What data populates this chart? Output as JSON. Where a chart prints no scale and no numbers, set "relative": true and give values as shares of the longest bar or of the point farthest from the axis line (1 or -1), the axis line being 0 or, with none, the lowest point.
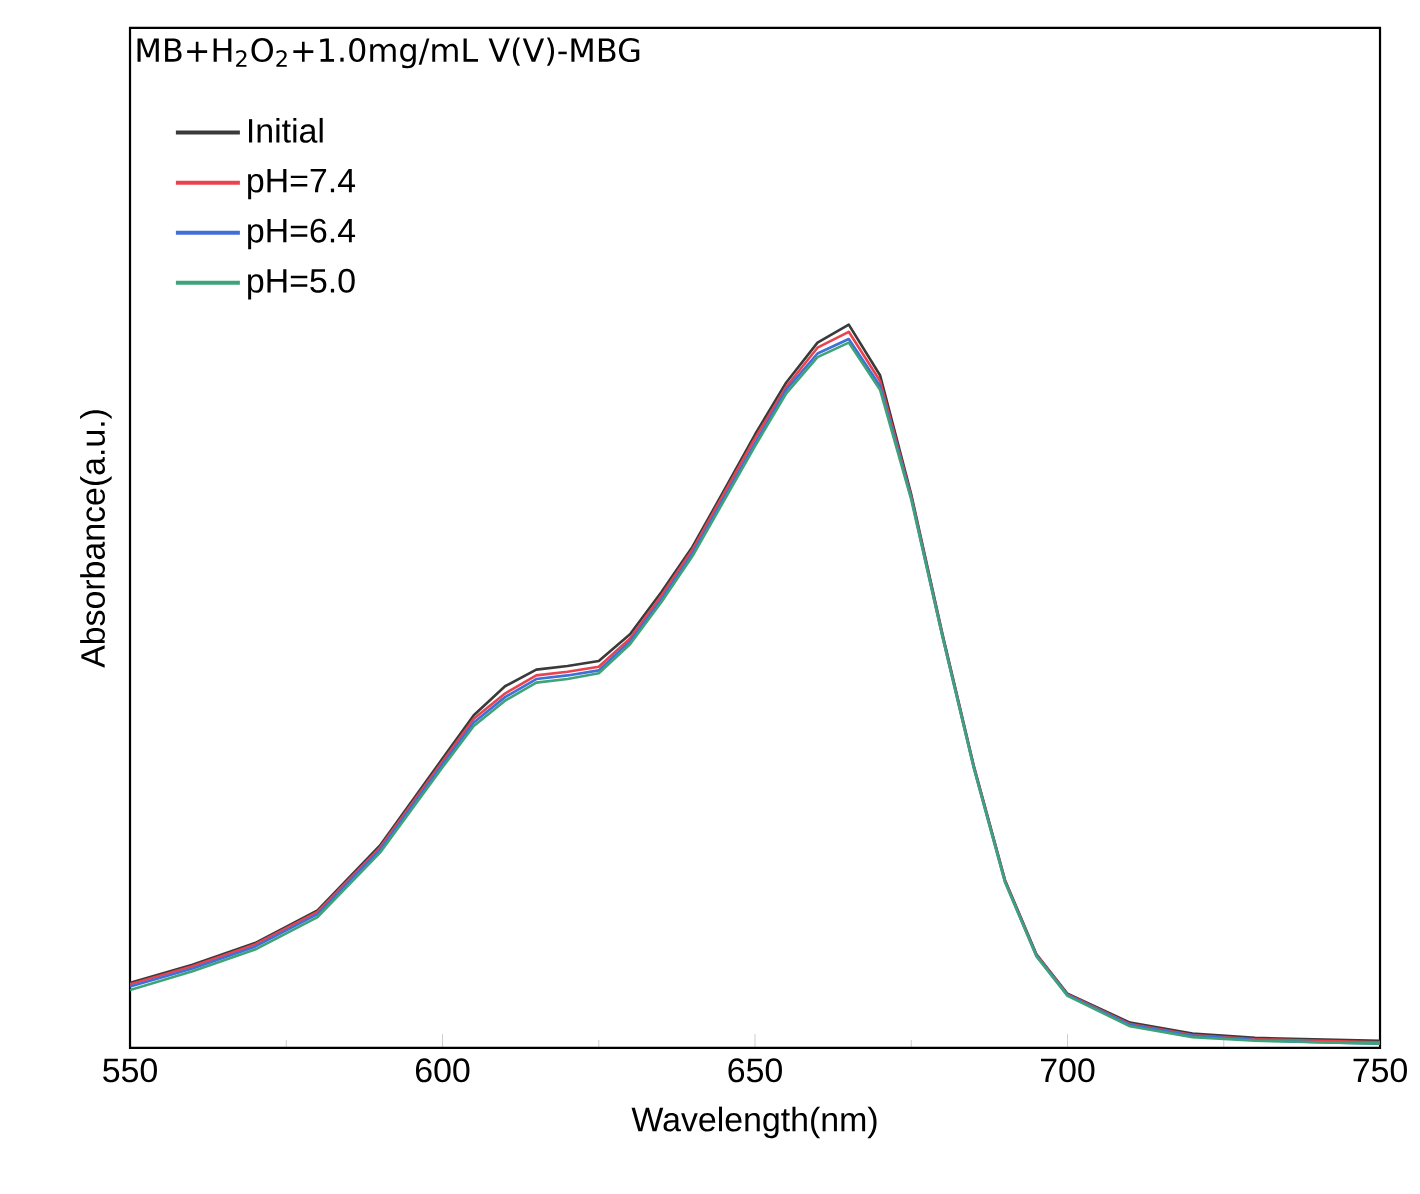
{
  "chart_data": {
    "type": "line",
    "title": "MB+H$_{2}$O$_{2}$+1.0mg/mL V(Ⅴ)-MBG",
    "xlabel": "Wavelength(nm)",
    "ylabel": "Absorbance(a.u.)",
    "relative": true,
    "x": [
      550,
      560,
      570,
      580,
      590,
      600,
      605,
      610,
      615,
      620,
      625,
      630,
      635,
      640,
      645,
      650,
      655,
      660,
      665,
      670,
      675,
      680,
      685,
      690,
      695,
      700,
      710,
      720,
      730,
      740,
      750
    ],
    "xlim": [
      550,
      750
    ],
    "xticks": [
      550,
      600,
      650,
      700,
      750
    ],
    "legend": "top left",
    "series": [
      {
        "name": "Initial",
        "color": "#3a3a3a",
        "values": [
          0.09,
          0.115,
          0.145,
          0.19,
          0.28,
          0.4,
          0.46,
          0.5,
          0.523,
          0.528,
          0.535,
          0.572,
          0.63,
          0.693,
          0.77,
          0.848,
          0.92,
          0.975,
          1,
          0.93,
          0.765,
          0.572,
          0.39,
          0.232,
          0.13,
          0.075,
          0.035,
          0.02,
          0.014,
          0.012,
          0.01
        ]
      },
      {
        "name": "pH=7.4",
        "color": "#e8434f",
        "values": [
          0.088,
          0.113,
          0.143,
          0.188,
          0.277,
          0.396,
          0.455,
          0.49,
          0.515,
          0.52,
          0.527,
          0.566,
          0.625,
          0.689,
          0.766,
          0.843,
          0.914,
          0.968,
          0.99,
          0.922,
          0.762,
          0.57,
          0.389,
          0.231,
          0.129,
          0.074,
          0.033,
          0.018,
          0.012,
          0.01,
          0.008
        ]
      },
      {
        "name": "pH=6.4",
        "color": "#3f6fd8",
        "values": [
          0.085,
          0.11,
          0.14,
          0.185,
          0.274,
          0.392,
          0.45,
          0.485,
          0.51,
          0.515,
          0.522,
          0.562,
          0.62,
          0.684,
          0.76,
          0.836,
          0.91,
          0.96,
          0.98,
          0.915,
          0.76,
          0.569,
          0.388,
          0.23,
          0.128,
          0.073,
          0.032,
          0.017,
          0.011,
          0.008,
          0.006
        ]
      },
      {
        "name": "pH=5.0",
        "color": "#3fa37a",
        "values": [
          0.08,
          0.106,
          0.136,
          0.181,
          0.27,
          0.388,
          0.445,
          0.48,
          0.505,
          0.51,
          0.518,
          0.558,
          0.616,
          0.68,
          0.756,
          0.832,
          0.905,
          0.955,
          0.975,
          0.91,
          0.758,
          0.568,
          0.387,
          0.229,
          0.127,
          0.072,
          0.03,
          0.015,
          0.01,
          0.008,
          0.006
        ]
      }
    ]
  }
}
